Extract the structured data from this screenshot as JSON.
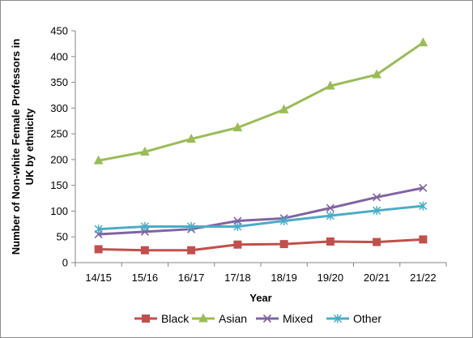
{
  "chart_data": {
    "type": "line",
    "title": "",
    "xlabel": "Year",
    "ylabel": "Number of Non-white Female Professors in UK by ethnicity",
    "ylabel_lines": [
      "Number of Non-white Female Professors in",
      "UK by ethnicity"
    ],
    "ylim": [
      0,
      450
    ],
    "yticks": [
      0,
      50,
      100,
      150,
      200,
      250,
      300,
      350,
      400,
      450
    ],
    "grid": false,
    "legend_position": "bottom",
    "categories": [
      "14/15",
      "15/16",
      "16/17",
      "17/18",
      "18/19",
      "19/20",
      "20/21",
      "21/22"
    ],
    "series": [
      {
        "name": "Black",
        "color": "#c0504d",
        "marker": "square",
        "values": [
          26,
          24,
          24,
          35,
          36,
          41,
          40,
          45
        ]
      },
      {
        "name": "Asian",
        "color": "#9bbb59",
        "marker": "triangle",
        "values": [
          198,
          215,
          240,
          262,
          297,
          343,
          365,
          427
        ]
      },
      {
        "name": "Mixed",
        "color": "#8064a2",
        "marker": "x",
        "values": [
          55,
          60,
          65,
          81,
          86,
          106,
          127,
          145
        ]
      },
      {
        "name": "Other",
        "color": "#4bacc6",
        "marker": "star",
        "values": [
          65,
          70,
          70,
          70,
          81,
          91,
          101,
          110
        ]
      }
    ]
  }
}
